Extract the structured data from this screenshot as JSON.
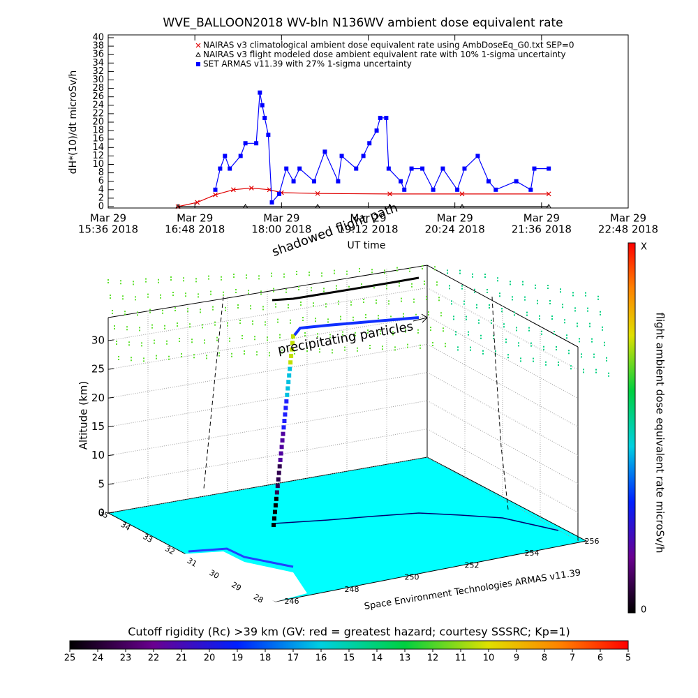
{
  "chart_data": [
    {
      "type": "line",
      "title": "WVE_BALLOON2018 WV-bln N136WV ambient dose equivalent rate",
      "xlabel": "UT time",
      "ylabel": "dH*(10)/dt microSv/h",
      "xlim": [
        "2018-03-29T15:36",
        "2018-03-29T22:48"
      ],
      "xticks": [
        {
          "value": "2018-03-29T15:36",
          "label": [
            "Mar 29",
            "15:36 2018"
          ]
        },
        {
          "value": "2018-03-29T16:48",
          "label": [
            "Mar 29",
            "16:48 2018"
          ]
        },
        {
          "value": "2018-03-29T18:00",
          "label": [
            "Mar 29",
            "18:00 2018"
          ]
        },
        {
          "value": "2018-03-29T19:12",
          "label": [
            "Mar 29",
            "19:12 2018"
          ]
        },
        {
          "value": "2018-03-29T20:24",
          "label": [
            "Mar 29",
            "20:24 2018"
          ]
        },
        {
          "value": "2018-03-29T21:36",
          "label": [
            "Mar 29",
            "21:36 2018"
          ]
        },
        {
          "value": "2018-03-29T22:48",
          "label": [
            "Mar 29",
            "22:48 2018"
          ]
        }
      ],
      "ylim": [
        0,
        40
      ],
      "yticks": [
        0,
        2,
        4,
        6,
        8,
        10,
        12,
        14,
        16,
        18,
        20,
        22,
        24,
        26,
        28,
        30,
        32,
        34,
        36,
        38,
        40
      ],
      "series": [
        {
          "name": "NAIRAS v3 climatological ambient dose equivalent rate using AmbDoseEq_G0.txt SEP=0",
          "color": "#e00000",
          "marker": "x",
          "x": [
            "2018-03-29T16:34",
            "2018-03-29T16:50",
            "2018-03-29T17:05",
            "2018-03-29T17:20",
            "2018-03-29T17:35",
            "2018-03-29T17:50",
            "2018-03-29T18:00",
            "2018-03-29T18:30",
            "2018-03-29T19:30",
            "2018-03-29T20:30",
            "2018-03-29T21:42"
          ],
          "values": [
            0,
            1,
            2.8,
            4,
            4.4,
            4,
            3.3,
            3.1,
            3,
            3,
            3
          ]
        },
        {
          "name": "NAIRAS v3 flight modeled dose ambient equivalent rate with 10% 1-sigma uncertainty",
          "color": "#000000",
          "marker": "triangle",
          "x": [
            "2018-03-29T16:34",
            "2018-03-29T17:30",
            "2018-03-29T18:30",
            "2018-03-29T19:30",
            "2018-03-29T20:30",
            "2018-03-29T21:42"
          ],
          "values": [
            0,
            0,
            0,
            0,
            0,
            0
          ]
        },
        {
          "name": "SET ARMAS v11.39 with 27% 1-sigma uncertainty",
          "color": "#0000ff",
          "marker": "square",
          "x": [
            "2018-03-29T17:05",
            "2018-03-29T17:09",
            "2018-03-29T17:13",
            "2018-03-29T17:17",
            "2018-03-29T17:26",
            "2018-03-29T17:30",
            "2018-03-29T17:39",
            "2018-03-29T17:42",
            "2018-03-29T17:44",
            "2018-03-29T17:46",
            "2018-03-29T17:49",
            "2018-03-29T17:52",
            "2018-03-29T17:58",
            "2018-03-29T18:04",
            "2018-03-29T18:10",
            "2018-03-29T18:15",
            "2018-03-29T18:27",
            "2018-03-29T18:36",
            "2018-03-29T18:47",
            "2018-03-29T18:50",
            "2018-03-29T19:02",
            "2018-03-29T19:08",
            "2018-03-29T19:13",
            "2018-03-29T19:19",
            "2018-03-29T19:22",
            "2018-03-29T19:27",
            "2018-03-29T19:29",
            "2018-03-29T19:39",
            "2018-03-29T19:42",
            "2018-03-29T19:48",
            "2018-03-29T19:57",
            "2018-03-29T20:06",
            "2018-03-29T20:14",
            "2018-03-29T20:26",
            "2018-03-29T20:32",
            "2018-03-29T20:43",
            "2018-03-29T20:52",
            "2018-03-29T20:58",
            "2018-03-29T21:15",
            "2018-03-29T21:27",
            "2018-03-29T21:30",
            "2018-03-29T21:42"
          ],
          "values": [
            4,
            9,
            12,
            9,
            12,
            15,
            15,
            27,
            24,
            21,
            17,
            1,
            3,
            9,
            6,
            9,
            6,
            13,
            6,
            12,
            9,
            12,
            15,
            18,
            21,
            21,
            9,
            6,
            4,
            9,
            9,
            4,
            9,
            4,
            9,
            12,
            6,
            4,
            6,
            4,
            9,
            9
          ]
        }
      ]
    },
    {
      "type": "scatter3d",
      "zlabel": "Altitude (km)",
      "zlim": [
        0,
        34
      ],
      "zticks": [
        0,
        5,
        10,
        15,
        20,
        25,
        30
      ],
      "latlim": [
        35,
        28
      ],
      "latticks": [
        35,
        34,
        33,
        32,
        31,
        30,
        29,
        28
      ],
      "lonlim": [
        246,
        256
      ],
      "lonticks": [
        246,
        248,
        250,
        252,
        254,
        256
      ],
      "annotations": [
        "shadowed flight path",
        "precipitating particles"
      ],
      "credit": "Space Environment Technologies ARMAS v11.39",
      "colorbar": {
        "label": "flight ambient dose equivalent rate microSv/h",
        "top_label": "X",
        "bottom_label": "0"
      },
      "rigidity_colorbar": {
        "title": "Cutoff rigidity (Rc) >39 km (GV: red = greatest hazard; courtesy SSSRC; Kp=1)",
        "lim": [
          25,
          5
        ],
        "ticks": [
          25,
          24,
          23,
          22,
          21,
          20,
          19,
          18,
          17,
          16,
          15,
          14,
          13,
          12,
          11,
          10,
          9,
          8,
          7,
          6,
          5
        ]
      }
    }
  ]
}
